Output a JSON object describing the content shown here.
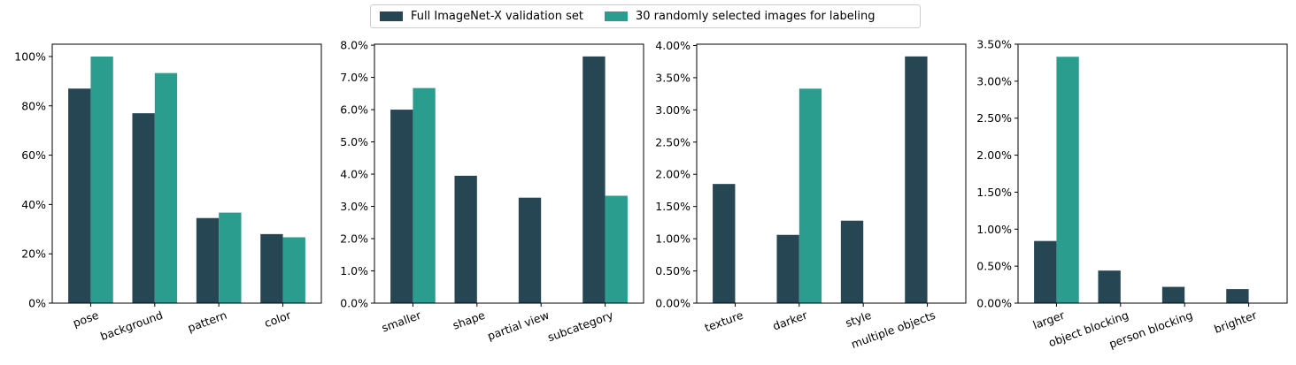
{
  "colors": {
    "full": "#264653",
    "sample": "#2a9d8f"
  },
  "legend": {
    "full_label": "Full ImageNet-X validation set",
    "sample_label": "30 randomly selected images for labeling"
  },
  "chart_data": [
    {
      "type": "bar",
      "categories": [
        "pose",
        "background",
        "pattern",
        "color"
      ],
      "series": [
        {
          "name": "Full ImageNet-X validation set",
          "values": [
            87.0,
            77.0,
            34.5,
            28.0
          ]
        },
        {
          "name": "30 randomly selected images for labeling",
          "values": [
            100.0,
            93.3,
            36.7,
            26.7
          ]
        }
      ],
      "ylim": [
        0,
        105
      ],
      "yticks": [
        0,
        20,
        40,
        60,
        80,
        100
      ],
      "ytick_labels": [
        "0%",
        "20%",
        "40%",
        "60%",
        "80%",
        "100%"
      ]
    },
    {
      "type": "bar",
      "categories": [
        "smaller",
        "shape",
        "partial view",
        "subcategory"
      ],
      "series": [
        {
          "name": "Full ImageNet-X validation set",
          "values": [
            6.0,
            3.95,
            3.27,
            7.65
          ]
        },
        {
          "name": "30 randomly selected images for labeling",
          "values": [
            6.67,
            0,
            0,
            3.33
          ]
        }
      ],
      "ylim": [
        0,
        8.03
      ],
      "yticks": [
        0,
        1,
        2,
        3,
        4,
        5,
        6,
        7,
        8
      ],
      "ytick_labels": [
        "0.0%",
        "1.0%",
        "2.0%",
        "3.0%",
        "4.0%",
        "5.0%",
        "6.0%",
        "7.0%",
        "8.0%"
      ]
    },
    {
      "type": "bar",
      "categories": [
        "texture",
        "darker",
        "style",
        "multiple objects"
      ],
      "series": [
        {
          "name": "Full ImageNet-X validation set",
          "values": [
            1.85,
            1.06,
            1.28,
            3.83
          ]
        },
        {
          "name": "30 randomly selected images for labeling",
          "values": [
            0,
            3.33,
            0,
            0
          ]
        }
      ],
      "ylim": [
        0,
        4.02
      ],
      "yticks": [
        0,
        0.5,
        1.0,
        1.5,
        2.0,
        2.5,
        3.0,
        3.5,
        4.0
      ],
      "ytick_labels": [
        "0.00%",
        "0.50%",
        "1.00%",
        "1.50%",
        "2.00%",
        "2.50%",
        "3.00%",
        "3.50%",
        "4.00%"
      ]
    },
    {
      "type": "bar",
      "categories": [
        "larger",
        "object blocking",
        "person blocking",
        "brighter"
      ],
      "series": [
        {
          "name": "Full ImageNet-X validation set",
          "values": [
            0.84,
            0.44,
            0.22,
            0.19
          ]
        },
        {
          "name": "30 randomly selected images for labeling",
          "values": [
            3.33,
            0,
            0,
            0
          ]
        }
      ],
      "ylim": [
        0,
        3.5
      ],
      "yticks": [
        0,
        0.5,
        1.0,
        1.5,
        2.0,
        2.5,
        3.0,
        3.5
      ],
      "ytick_labels": [
        "0.00%",
        "0.50%",
        "1.00%",
        "1.50%",
        "2.00%",
        "2.50%",
        "3.00%",
        "3.50%"
      ]
    }
  ]
}
